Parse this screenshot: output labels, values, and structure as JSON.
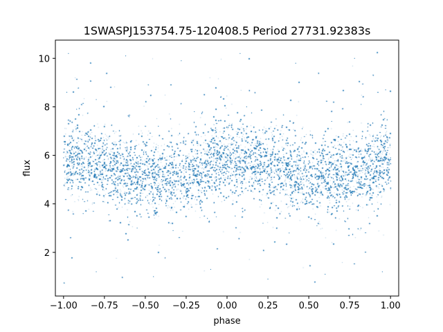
{
  "chart_data": {
    "type": "scatter",
    "title": "1SWASPJ153754.75-120408.5 Period 27731.92383s",
    "xlabel": "phase",
    "ylabel": "flux",
    "xlim": [
      -1.05,
      1.05
    ],
    "ylim": [
      0.2,
      10.75
    ],
    "x_ticks": [
      -1.0,
      -0.75,
      -0.5,
      -0.25,
      0.0,
      0.25,
      0.5,
      0.75,
      1.0
    ],
    "x_tick_labels": [
      "−1.00",
      "−0.75",
      "−0.50",
      "−0.25",
      "0.00",
      "0.25",
      "0.50",
      "0.75",
      "1.00"
    ],
    "y_ticks": [
      2,
      4,
      6,
      8,
      10
    ],
    "y_tick_labels": [
      "2",
      "4",
      "6",
      "8",
      "10"
    ],
    "grid": false,
    "marker_color": "#1f77b4",
    "trend": {
      "description": "dense band of points following a phase-folded sinusoidal light curve",
      "x": [
        -1.0,
        -0.75,
        -0.5,
        -0.25,
        0.0,
        0.25,
        0.5,
        0.75,
        1.0
      ],
      "y": [
        5.9,
        5.6,
        5.1,
        5.2,
        5.9,
        5.6,
        5.1,
        5.2,
        5.9
      ]
    },
    "series": [
      {
        "name": "flux",
        "marker": "point",
        "points": [
          [
            -1.0,
            5.9
          ],
          [
            -0.95,
            5.85
          ],
          [
            -0.9,
            5.8
          ],
          [
            -0.85,
            5.75
          ],
          [
            -0.8,
            5.65
          ],
          [
            -0.75,
            5.55
          ],
          [
            -0.7,
            5.4
          ],
          [
            -0.65,
            5.3
          ],
          [
            -0.6,
            5.2
          ],
          [
            -0.55,
            5.1
          ],
          [
            -0.5,
            5.05
          ],
          [
            -0.45,
            5.0
          ],
          [
            -0.4,
            5.0
          ],
          [
            -0.35,
            5.05
          ],
          [
            -0.3,
            5.15
          ],
          [
            -0.25,
            5.3
          ],
          [
            -0.2,
            5.45
          ],
          [
            -0.15,
            5.6
          ],
          [
            -0.1,
            5.75
          ],
          [
            -0.05,
            5.85
          ],
          [
            0.0,
            5.9
          ],
          [
            0.05,
            5.85
          ],
          [
            0.1,
            5.8
          ],
          [
            0.15,
            5.75
          ],
          [
            0.2,
            5.65
          ],
          [
            0.25,
            5.55
          ],
          [
            0.3,
            5.4
          ],
          [
            0.35,
            5.3
          ],
          [
            0.4,
            5.2
          ],
          [
            0.45,
            5.1
          ],
          [
            0.5,
            5.05
          ],
          [
            0.55,
            5.0
          ],
          [
            0.6,
            5.0
          ],
          [
            0.65,
            5.05
          ],
          [
            0.7,
            5.15
          ],
          [
            0.75,
            5.3
          ],
          [
            0.8,
            5.45
          ],
          [
            0.85,
            5.6
          ],
          [
            0.9,
            5.75
          ],
          [
            0.95,
            5.85
          ],
          [
            1.0,
            5.9
          ],
          [
            -0.98,
            8.6
          ],
          [
            -0.92,
            7.9
          ],
          [
            -0.88,
            3.6
          ],
          [
            -0.8,
            8.3
          ],
          [
            -0.72,
            3.3
          ],
          [
            -0.6,
            7.6
          ],
          [
            -0.55,
            3.0
          ],
          [
            -0.42,
            7.2
          ],
          [
            -0.33,
            2.9
          ],
          [
            -0.2,
            7.8
          ],
          [
            -0.12,
            3.4
          ],
          [
            -0.04,
            8.4
          ],
          [
            0.05,
            3.5
          ],
          [
            0.12,
            8.0
          ],
          [
            0.22,
            3.2
          ],
          [
            0.3,
            7.5
          ],
          [
            0.38,
            2.8
          ],
          [
            0.46,
            7.1
          ],
          [
            0.55,
            3.1
          ],
          [
            0.64,
            7.4
          ],
          [
            0.72,
            3.3
          ],
          [
            0.82,
            8.1
          ],
          [
            0.9,
            3.7
          ],
          [
            0.97,
            8.7
          ],
          [
            -0.97,
            10.2
          ],
          [
            -0.8,
            1.2
          ],
          [
            -0.62,
            10.1
          ],
          [
            -0.45,
            1.0
          ],
          [
            -0.28,
            9.9
          ],
          [
            -0.1,
            1.3
          ],
          [
            0.08,
            10.2
          ],
          [
            0.25,
            0.9
          ],
          [
            0.42,
            9.8
          ],
          [
            0.6,
            1.1
          ],
          [
            0.78,
            10.0
          ],
          [
            0.95,
            1.2
          ]
        ]
      }
    ]
  }
}
